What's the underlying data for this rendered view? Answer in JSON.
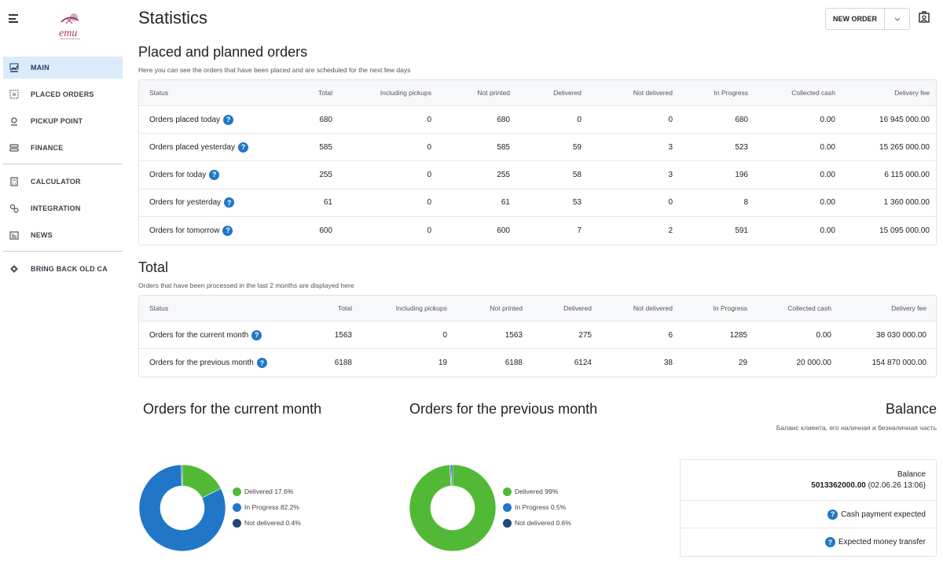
{
  "sidebar": {
    "logo_text": "emu",
    "items": [
      {
        "label": "MAIN",
        "icon": "chart-icon",
        "active": true
      },
      {
        "label": "PLACED ORDERS",
        "icon": "list-icon"
      },
      {
        "label": "PICKUP POINT",
        "icon": "pin-icon"
      },
      {
        "label": "FINANCE",
        "icon": "finance-icon"
      },
      {
        "label": "CALCULATOR",
        "icon": "calculator-icon"
      },
      {
        "label": "INTEGRATION",
        "icon": "gears-icon"
      },
      {
        "label": "NEWS",
        "icon": "news-icon"
      },
      {
        "label": "BRING BACK OLD CA",
        "icon": "diamond-icon"
      }
    ]
  },
  "header": {
    "title": "Statistics",
    "new_order_label": "NEW ORDER"
  },
  "planned": {
    "title": "Placed and planned orders",
    "subtitle": "Here you can see the orders that have been placed and are scheduled for the next few days",
    "columns": [
      "Status",
      "Total",
      "Including pickups",
      "Not printed",
      "Delivered",
      "Not delivered",
      "In Progress",
      "Collected cash",
      "Delivery fee"
    ],
    "rows": [
      [
        "Orders placed today",
        "680",
        "0",
        "680",
        "0",
        "0",
        "680",
        "0.00",
        "16 945 000.00"
      ],
      [
        "Orders placed yesterday",
        "585",
        "0",
        "585",
        "59",
        "3",
        "523",
        "0.00",
        "15 265 000.00"
      ],
      [
        "Orders for today",
        "255",
        "0",
        "255",
        "58",
        "3",
        "196",
        "0.00",
        "6 115 000.00"
      ],
      [
        "Orders for yesterday",
        "61",
        "0",
        "61",
        "53",
        "0",
        "8",
        "0.00",
        "1 360 000.00"
      ],
      [
        "Orders for tomorrow",
        "600",
        "0",
        "600",
        "7",
        "2",
        "591",
        "0.00",
        "15 095 000.00"
      ]
    ]
  },
  "total": {
    "title": "Total",
    "subtitle": "Orders that have been processed in the last 2 months are displayed here",
    "columns": [
      "Status",
      "Total",
      "Including pickups",
      "Not printed",
      "Delivered",
      "Not delivered",
      "In Progress",
      "Collected cash",
      "Delivery fee"
    ],
    "rows": [
      [
        "Orders for the current month",
        "1563",
        "0",
        "1563",
        "275",
        "6",
        "1285",
        "0.00",
        "38 030 000.00"
      ],
      [
        "Orders for the previous month",
        "6188",
        "19",
        "6188",
        "6124",
        "38",
        "29",
        "20 000.00",
        "154 870 000.00"
      ]
    ]
  },
  "chart_data": [
    {
      "type": "pie",
      "title": "Orders for the current month",
      "categories": [
        "Delivered",
        "In Progress",
        "Not delivered"
      ],
      "values": [
        17.6,
        82.2,
        0.4
      ],
      "labels": [
        "Delivered 17.6%",
        "In Progress 82.2%",
        "Not delivered 0.4%"
      ],
      "colors": [
        "#52b936",
        "#2176c7",
        "#1d4a7a"
      ]
    },
    {
      "type": "pie",
      "title": "Orders for the previous month",
      "categories": [
        "Delivered",
        "In Progress",
        "Not delivered"
      ],
      "values": [
        99,
        0.5,
        0.6
      ],
      "labels": [
        "Delivered 99%",
        "In Progress 0.5%",
        "Not delivered 0.6%"
      ],
      "colors": [
        "#52b936",
        "#2176c7",
        "#1d4a7a"
      ]
    }
  ],
  "balance": {
    "title": "Balance",
    "subtitle": "Баланс клиента, его наличная и безналичная часть",
    "label": "Balance",
    "value": "5013362000.00",
    "date": "(02.06.26 13:06)",
    "cash_expected": "Cash payment expected",
    "transfer_expected": "Expected money transfer"
  }
}
